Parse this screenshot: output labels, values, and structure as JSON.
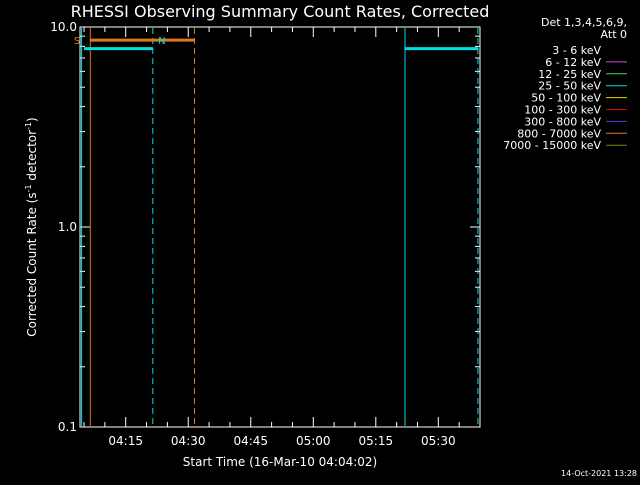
{
  "chart_data": {
    "type": "line",
    "title": "RHESSI Observing Summary Count Rates, Corrected",
    "xlabel": "Start Time (16-Mar-10 04:04:02)",
    "ylabel_main": "Corrected Count Rate (s",
    "ylabel_sup1": "-1",
    "ylabel_mid": " detector",
    "ylabel_sup2": "-1",
    "ylabel_end": ")",
    "yscale": "log",
    "ylim": [
      0.1,
      10.0
    ],
    "yticks": [
      {
        "value": 0.1,
        "label": "0.1"
      },
      {
        "value": 1.0,
        "label": "1.0"
      },
      {
        "value": 10.0,
        "label": "10.0"
      }
    ],
    "xlim": [
      "04:04:02",
      "05:40:00"
    ],
    "xticks": [
      "04:15",
      "04:30",
      "04:45",
      "05:00",
      "05:15",
      "05:30"
    ],
    "legend_header": [
      "Det 1,3,4,5,6,9,",
      "Att 0"
    ],
    "legend_position": "outside-right",
    "series": [
      {
        "name": "3 - 6 keV",
        "color": "#000000",
        "points": []
      },
      {
        "name": "6 - 12 keV",
        "color": "#e040e0",
        "points": []
      },
      {
        "name": "12 - 25 keV",
        "color": "#40e040",
        "points": []
      },
      {
        "name": "25 - 50 keV",
        "color": "#00e0e0",
        "points": [
          {
            "x": "04:05:00",
            "y": 7.8
          },
          {
            "x": "04:21:30",
            "y": 7.8
          },
          {
            "x": "05:22:00",
            "y": 7.8
          },
          {
            "x": "05:39:30",
            "y": 7.8
          }
        ]
      },
      {
        "name": "50 - 100 keV",
        "color": "#e0e000",
        "points": []
      },
      {
        "name": "100 - 300 keV",
        "color": "#e00000",
        "points": []
      },
      {
        "name": "300 - 800 keV",
        "color": "#4040e0",
        "points": []
      },
      {
        "name": "800 - 7000 keV",
        "color": "#e07820",
        "points": [
          {
            "x": "04:06:30",
            "y": 8.6
          },
          {
            "x": "04:31:30",
            "y": 8.6
          }
        ]
      },
      {
        "name": "7000 - 15000 keV",
        "color": "#808000",
        "points": []
      }
    ],
    "annotations": [
      {
        "text": "S",
        "x": "04:03:20",
        "color": "#e07820"
      },
      {
        "text": "N",
        "x": "04:23:40",
        "color": "#00e0e0"
      }
    ],
    "event_lines": [
      {
        "x": "04:04:25",
        "color": "#00e0e0",
        "style": "solid"
      },
      {
        "x": "04:06:30",
        "color": "#e07820",
        "style": "solid"
      },
      {
        "x": "04:21:30",
        "color": "#00e0e0",
        "style": "dashed"
      },
      {
        "x": "04:31:30",
        "color": "#e07820",
        "style": "dashed"
      },
      {
        "x": "05:22:00",
        "color": "#00e0e0",
        "style": "solid"
      },
      {
        "x": "05:39:30",
        "color": "#00e0e0",
        "style": "dashed"
      }
    ]
  },
  "footer": {
    "timestamp": "14-Oct-2021 13:28"
  }
}
